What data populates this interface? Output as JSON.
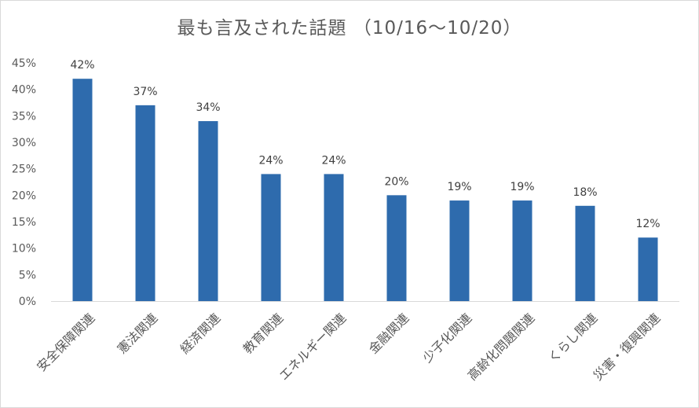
{
  "chart_data": {
    "type": "bar",
    "title": "最も言及された話題 （10/16～10/20）",
    "categories": [
      "安全保障関連",
      "憲法関連",
      "経済関連",
      "教育関連",
      "エネルギー関連",
      "金融関連",
      "少子化関連",
      "高齢化問題関連",
      "くらし関連",
      "災害・復興関連"
    ],
    "values": [
      42,
      37,
      34,
      24,
      24,
      20,
      19,
      19,
      18,
      12
    ],
    "data_labels": [
      "42%",
      "37%",
      "34%",
      "24%",
      "24%",
      "20%",
      "19%",
      "19%",
      "18%",
      "12%"
    ],
    "y_ticks": [
      "0%",
      "5%",
      "10%",
      "15%",
      "20%",
      "25%",
      "30%",
      "35%",
      "40%",
      "45%"
    ],
    "ylim": [
      0,
      45
    ],
    "grid": false,
    "legend": "none",
    "bar_color": "#2e6bad",
    "axis_color": "#d9d9d9",
    "text_color": "#595959"
  }
}
